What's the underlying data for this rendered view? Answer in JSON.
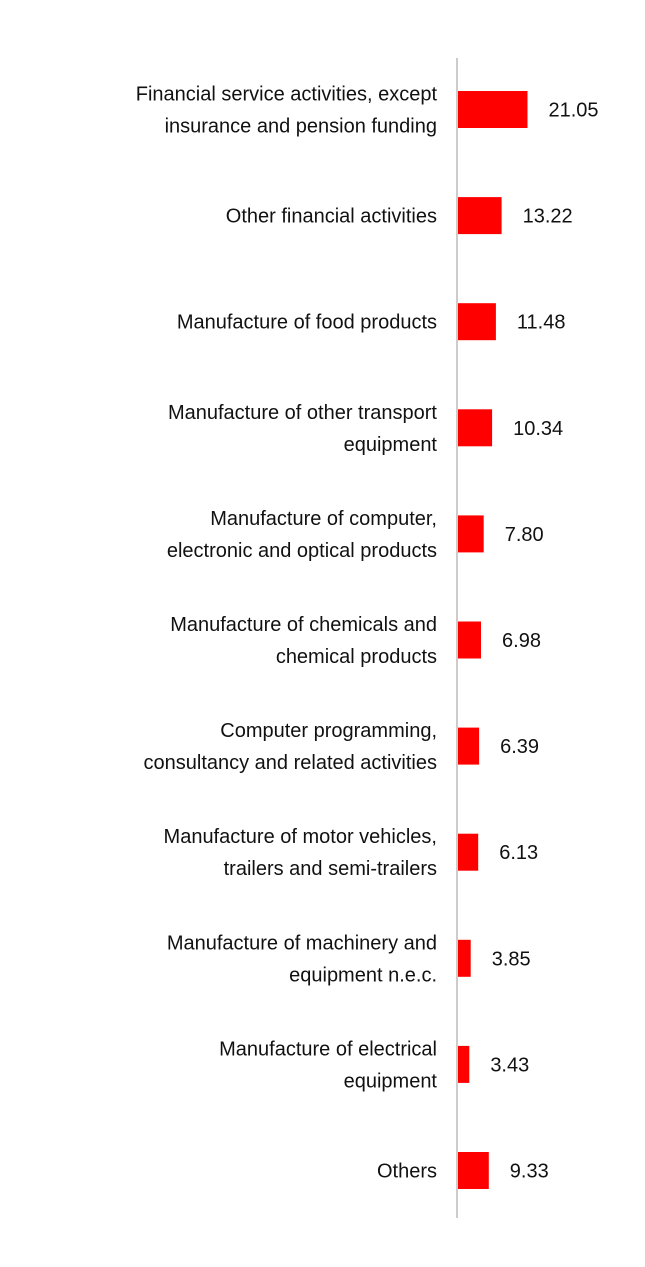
{
  "chart_data": {
    "type": "bar",
    "orientation": "horizontal",
    "categories": [
      [
        "Financial service activities, except",
        "insurance and pension funding"
      ],
      [
        "Other financial activities"
      ],
      [
        "Manufacture of food products"
      ],
      [
        "Manufacture of other transport",
        "equipment"
      ],
      [
        "Manufacture of computer,",
        "electronic and optical products"
      ],
      [
        "Manufacture of chemicals and",
        "chemical products"
      ],
      [
        "Computer programming,",
        "consultancy and related activities"
      ],
      [
        "Manufacture of motor vehicles,",
        "trailers and semi-trailers"
      ],
      [
        "Manufacture of machinery and",
        "equipment n.e.c."
      ],
      [
        "Manufacture of electrical",
        "equipment"
      ],
      [
        "Others"
      ]
    ],
    "values": [
      21.05,
      13.22,
      11.48,
      10.34,
      7.8,
      6.98,
      6.39,
      6.13,
      3.85,
      3.43,
      9.33
    ],
    "value_labels": [
      "21.05",
      "13.22",
      "11.48",
      "10.34",
      "7.80",
      "6.98",
      "6.39",
      "6.13",
      "3.85",
      "3.43",
      "9.33"
    ],
    "bar_color": "#ff0000",
    "axis_color": "#cccccc",
    "grid": false,
    "legend": false
  }
}
